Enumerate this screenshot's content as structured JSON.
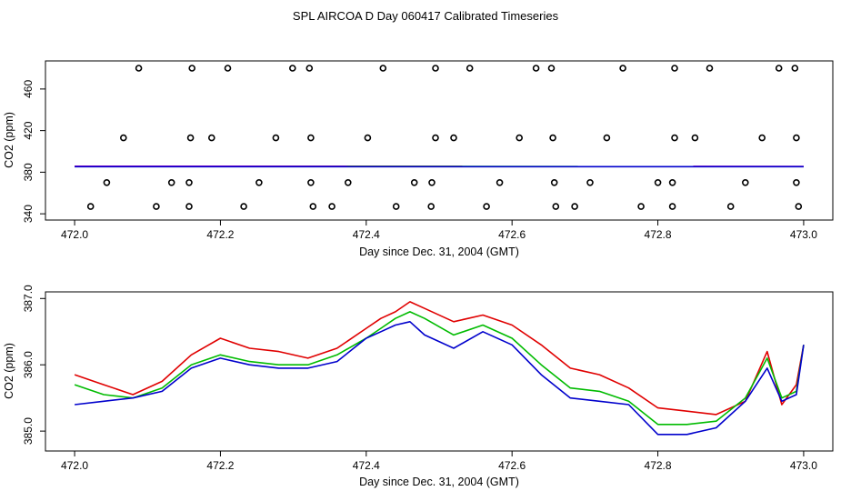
{
  "title": "SPL AIRCOA D  Day 060417  Calibrated Timeseries",
  "colors": {
    "red": "#e00000",
    "green": "#00bb00",
    "blue": "#0000cc",
    "purple": "#bb00bb",
    "axis": "#000000"
  },
  "chart_data": [
    {
      "type": "scatter",
      "xlabel": "Day since Dec. 31, 2004 (GMT)",
      "ylabel": "CO2 (ppm)",
      "xlim": [
        471.96,
        473.04
      ],
      "ylim": [
        334,
        487
      ],
      "x_ticks": [
        472.0,
        472.2,
        472.4,
        472.6,
        472.8,
        473.0
      ],
      "x_tick_labels": [
        "472.0",
        "472.2",
        "472.4",
        "472.6",
        "472.8",
        "473.0"
      ],
      "y_ticks": [
        340,
        380,
        420,
        460
      ],
      "y_tick_labels": [
        "340",
        "380",
        "420",
        "460"
      ],
      "points": {
        "x": [
          472.088,
          472.161,
          472.21,
          472.299,
          472.322,
          472.423,
          472.495,
          472.542,
          472.633,
          472.654,
          472.752,
          472.823,
          472.871,
          472.966,
          472.988,
          472.067,
          472.159,
          472.188,
          472.276,
          472.324,
          472.402,
          472.495,
          472.52,
          472.61,
          472.656,
          472.73,
          472.823,
          472.851,
          472.943,
          472.99,
          472.044,
          472.133,
          472.157,
          472.253,
          472.324,
          472.375,
          472.466,
          472.49,
          472.583,
          472.658,
          472.707,
          472.8,
          472.82,
          472.92,
          472.99,
          472.022,
          472.112,
          472.157,
          472.232,
          472.327,
          472.353,
          472.441,
          472.489,
          472.565,
          472.66,
          472.686,
          472.777,
          472.82,
          472.9,
          472.993
        ],
        "y": [
          480,
          480,
          480,
          480,
          480,
          480,
          480,
          480,
          480,
          480,
          480,
          480,
          480,
          480,
          480,
          413,
          413,
          413,
          413,
          413,
          413,
          413,
          413,
          413,
          413,
          413,
          413,
          413,
          413,
          413,
          370,
          370,
          370,
          370,
          370,
          370,
          370,
          370,
          370,
          370,
          370,
          370,
          370,
          370,
          370,
          347,
          347,
          347,
          347,
          347,
          347,
          347,
          347,
          347,
          347,
          347,
          347,
          347,
          347,
          347
        ]
      },
      "series": [
        {
          "name": "red",
          "color": "#e00000",
          "x": [
            472.0,
            473.0
          ],
          "y": [
            385.7,
            385.5
          ]
        },
        {
          "name": "green",
          "color": "#00bb00",
          "x": [
            472.0,
            473.0
          ],
          "y": [
            385.6,
            385.4
          ]
        },
        {
          "name": "purple",
          "color": "#bb00bb",
          "x": [
            472.0,
            473.0
          ],
          "y": [
            385.8,
            385.6
          ]
        },
        {
          "name": "blue",
          "color": "#0000cc",
          "x": [
            472.0,
            473.0
          ],
          "y": [
            385.3,
            385.3
          ]
        }
      ]
    },
    {
      "type": "line",
      "xlabel": "Day since Dec. 31, 2004 (GMT)",
      "ylabel": "CO2 (ppm)",
      "xlim": [
        471.96,
        473.04
      ],
      "ylim": [
        384.7,
        387.1
      ],
      "x_ticks": [
        472.0,
        472.2,
        472.4,
        472.6,
        472.8,
        473.0
      ],
      "x_tick_labels": [
        "472.0",
        "472.2",
        "472.4",
        "472.6",
        "472.8",
        "473.0"
      ],
      "y_ticks": [
        385.0,
        386.0,
        387.0
      ],
      "y_tick_labels": [
        "385.0",
        "386.0",
        "387.0"
      ],
      "series": [
        {
          "name": "red",
          "color": "#e00000",
          "x": [
            472.0,
            472.04,
            472.08,
            472.12,
            472.16,
            472.2,
            472.24,
            472.28,
            472.32,
            472.36,
            472.4,
            472.42,
            472.44,
            472.46,
            472.48,
            472.52,
            472.56,
            472.6,
            472.64,
            472.68,
            472.72,
            472.76,
            472.8,
            472.84,
            472.88,
            472.92,
            472.95,
            472.97,
            472.99,
            473.0
          ],
          "y": [
            385.85,
            385.7,
            385.55,
            385.75,
            386.15,
            386.4,
            386.25,
            386.2,
            386.1,
            386.25,
            386.55,
            386.7,
            386.8,
            386.95,
            386.85,
            386.65,
            386.75,
            386.6,
            386.3,
            385.95,
            385.85,
            385.65,
            385.35,
            385.3,
            385.25,
            385.45,
            386.2,
            385.4,
            385.7,
            386.3
          ]
        },
        {
          "name": "green",
          "color": "#00bb00",
          "x": [
            472.0,
            472.04,
            472.08,
            472.12,
            472.16,
            472.2,
            472.24,
            472.28,
            472.32,
            472.36,
            472.4,
            472.42,
            472.44,
            472.46,
            472.48,
            472.52,
            472.56,
            472.6,
            472.64,
            472.68,
            472.72,
            472.76,
            472.8,
            472.84,
            472.88,
            472.92,
            472.95,
            472.97,
            472.99,
            473.0
          ],
          "y": [
            385.7,
            385.55,
            385.5,
            385.65,
            386.0,
            386.15,
            386.05,
            386.0,
            386.0,
            386.15,
            386.4,
            386.55,
            386.7,
            386.8,
            386.7,
            386.45,
            386.6,
            386.4,
            386.0,
            385.65,
            385.6,
            385.45,
            385.1,
            385.1,
            385.15,
            385.5,
            386.1,
            385.5,
            385.6,
            386.3
          ]
        },
        {
          "name": "blue",
          "color": "#0000cc",
          "x": [
            472.0,
            472.04,
            472.08,
            472.12,
            472.16,
            472.2,
            472.24,
            472.28,
            472.32,
            472.36,
            472.4,
            472.42,
            472.44,
            472.46,
            472.48,
            472.52,
            472.56,
            472.6,
            472.64,
            472.68,
            472.72,
            472.76,
            472.8,
            472.84,
            472.88,
            472.92,
            472.95,
            472.97,
            472.99,
            473.0
          ],
          "y": [
            385.4,
            385.45,
            385.5,
            385.6,
            385.95,
            386.1,
            386.0,
            385.95,
            385.95,
            386.05,
            386.4,
            386.5,
            386.6,
            386.65,
            386.45,
            386.25,
            386.5,
            386.3,
            385.85,
            385.5,
            385.45,
            385.4,
            384.95,
            384.95,
            385.05,
            385.45,
            385.95,
            385.45,
            385.55,
            386.3
          ]
        }
      ]
    }
  ]
}
